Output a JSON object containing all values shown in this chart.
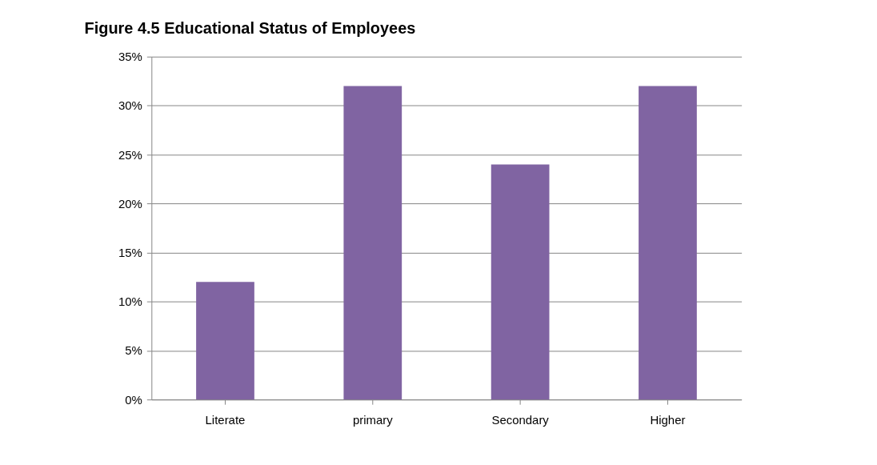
{
  "chart_data": {
    "type": "bar",
    "title": "Figure 4.5 Educational Status of Employees",
    "categories": [
      "Literate",
      "primary",
      "Secondary",
      "Higher"
    ],
    "values": [
      12,
      32,
      24,
      32
    ],
    "color": "#8064a2",
    "ylim": [
      0,
      35
    ],
    "yticks": [
      {
        "value": 0,
        "label": "0%"
      },
      {
        "value": 5,
        "label": "5%"
      },
      {
        "value": 10,
        "label": "10%"
      },
      {
        "value": 15,
        "label": "15%"
      },
      {
        "value": 20,
        "label": "20%"
      },
      {
        "value": 25,
        "label": "25%"
      },
      {
        "value": 30,
        "label": "30%"
      },
      {
        "value": 35,
        "label": "35%"
      }
    ],
    "grid": "y"
  }
}
